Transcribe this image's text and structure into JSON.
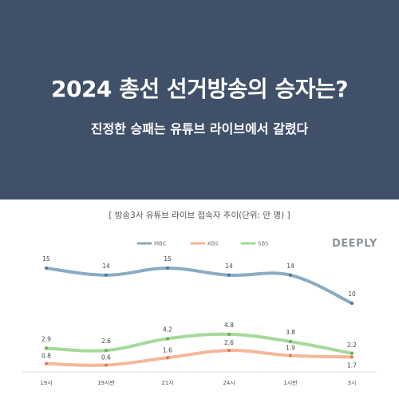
{
  "header": {
    "headline": "2024 총선 선거방송의 승자는?",
    "subhead": "진정한 승패는 유튜브 라이브에서 갈렸다"
  },
  "brand": "DEEPLY",
  "chart_data": {
    "type": "line",
    "title": "[ 방송3사 유튜브 라이브 접속자 추이(단위: 만 명) ]",
    "categories": [
      "19시",
      "19시반",
      "21시",
      "24시",
      "1시반",
      "3시"
    ],
    "series": [
      {
        "name": "MBC",
        "color": "#8aabc2",
        "values": [
          15,
          14,
          15,
          14,
          14,
          10
        ]
      },
      {
        "name": "KBS",
        "color": "#f4b79b",
        "values": [
          0.8,
          0.6,
          1.6,
          2.6,
          1.9,
          1.7
        ]
      },
      {
        "name": "SBS",
        "color": "#a6d89a",
        "values": [
          2.9,
          2.6,
          4.2,
          4.8,
          3.8,
          2.2
        ]
      }
    ],
    "legend_position": "top-center",
    "grid": false
  }
}
